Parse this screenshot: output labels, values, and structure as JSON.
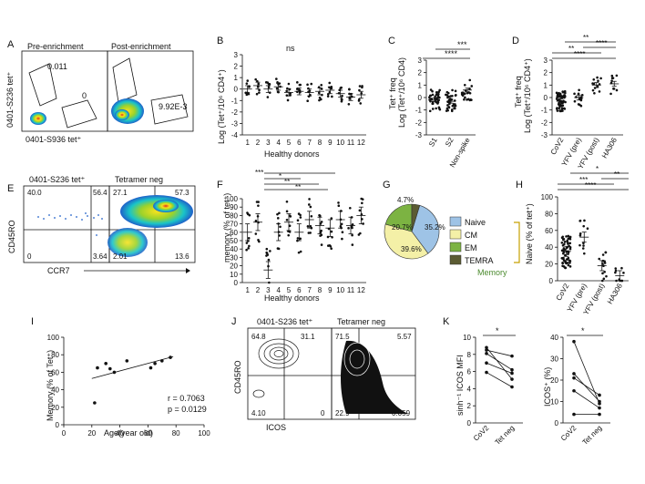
{
  "panels": {
    "A": {
      "letter": "A",
      "title_left": "Pre-enrichment",
      "title_right": "Post-enrichment",
      "ylabel": "0401-S236 tet⁺",
      "xlabel": "0401-S936 tet⁺",
      "pre_gate_top": "0.011",
      "pre_gate_bottom": "0",
      "post_gate": "9.92E-3"
    },
    "B": {
      "letter": "B",
      "stat": "ns",
      "ylabel": "Log (Tet⁺/10⁶ CD4⁺)",
      "xlabel": "Healthy donors"
    },
    "C": {
      "letter": "C",
      "ylabel_top": "Tet⁺ freq",
      "ylabel_bottom": "Log (Tet⁺/10⁶ CD4)",
      "sig_top": "***",
      "sig_bottom": "****"
    },
    "D": {
      "letter": "D",
      "ylabel_top": "Tet⁺ freq",
      "ylabel_bottom": "Log (Tet⁺/10⁶ CD4⁺)",
      "sigs": [
        "**",
        "****",
        "**",
        "****"
      ]
    },
    "E": {
      "letter": "E",
      "title_left": "0401-S236 tet⁺",
      "title_right": "Tetramer neg",
      "ylabel": "CD45RO",
      "xlabel": "CCR7",
      "left_q": [
        "40.0",
        "56.4",
        "0",
        "3.64"
      ],
      "right_q": [
        "27.1",
        "57.3",
        "2.01",
        "13.6"
      ]
    },
    "F": {
      "letter": "F",
      "ylabel": "memory (% of tet⁺)",
      "xlabel": "Healthy donors",
      "sigs": [
        "***",
        "*",
        "**",
        "**"
      ]
    },
    "G": {
      "letter": "G",
      "legend": [
        "Naive",
        "CM",
        "EM",
        "TEMRA"
      ],
      "memory_label": "Memory",
      "slices": [
        "35.2%",
        "39.6%",
        "20.7%",
        "4.7%"
      ]
    },
    "H": {
      "letter": "H",
      "ylabel": "Naive (% of tet⁺)",
      "sigs": [
        "*",
        "**",
        "***",
        "****"
      ]
    },
    "I": {
      "letter": "I",
      "ylabel": "Memory (% of Tet⁺)",
      "xlabel": "Age(year old)",
      "r_text": "r = 0.7063",
      "p_text": "p = 0.0129"
    },
    "J": {
      "letter": "J",
      "title_left": "0401-S236 tet⁺",
      "title_right": "Tetramer neg",
      "ylabel": "CD45RO",
      "xlabel": "ICOS",
      "left_q": [
        "64.8",
        "31.1",
        "4.10",
        "0"
      ],
      "right_q": [
        "71.5",
        "5.57",
        "22.9",
        "0.059"
      ]
    },
    "K": {
      "letter": "K",
      "left_ylabel": "sinh⁻¹ ICOS MFI",
      "right_ylabel": "ICOS⁺ (%)",
      "star": "*",
      "xcats": [
        "CoV2",
        "Tet neg"
      ]
    }
  },
  "colors": {
    "flow_blue": "#1f5fc9",
    "flow_cyan": "#19c4c9",
    "flow_green": "#9bd22b",
    "flow_yellow": "#f7e21e",
    "flow_red": "#e0281e",
    "naive": "#9ec3e6",
    "cm": "#f4f0a7",
    "em": "#7cb342",
    "temra": "#5b5b32",
    "memory_bracket": "#c6a000",
    "memory_text": "#4b8a2e"
  },
  "chart_data": [
    {
      "panel": "B",
      "type": "scatter",
      "categories": [
        "1",
        "2",
        "3",
        "4",
        "5",
        "6",
        "7",
        "8",
        "9",
        "10",
        "11",
        "12"
      ],
      "ylim": [
        -4,
        3
      ],
      "yticks": [
        -4,
        -3,
        -2,
        -1,
        0,
        1,
        2,
        3
      ],
      "series": [
        {
          "means": [
            0.0,
            0.3,
            0.0,
            0.2,
            -0.3,
            -0.2,
            -0.3,
            -0.2,
            -0.1,
            -0.4,
            -0.7,
            -0.5
          ]
        }
      ]
    },
    {
      "panel": "C",
      "type": "scatter",
      "categories": [
        "S1",
        "S2",
        "Non-spike"
      ],
      "ylim": [
        -3,
        3
      ],
      "yticks": [
        -3,
        -2,
        -1,
        0,
        1,
        2,
        3
      ],
      "series": [
        {
          "means": [
            -0.2,
            -0.3,
            0.6
          ]
        }
      ]
    },
    {
      "panel": "D",
      "type": "scatter",
      "categories": [
        "CoV2",
        "YFV (pre)",
        "YFV (post)",
        "HA306"
      ],
      "ylim": [
        -3,
        3
      ],
      "yticks": [
        -3,
        -2,
        -1,
        0,
        1,
        2,
        3
      ],
      "series": [
        {
          "means": [
            -0.3,
            0.0,
            1.0,
            1.1
          ]
        }
      ]
    },
    {
      "panel": "F",
      "type": "scatter",
      "categories": [
        "1",
        "2",
        "3",
        "4",
        "5",
        "6",
        "7",
        "8",
        "9",
        "10",
        "11",
        "12"
      ],
      "ylim": [
        0,
        100
      ],
      "yticks": [
        0,
        10,
        20,
        30,
        40,
        50,
        60,
        70,
        80,
        90,
        100
      ],
      "series": [
        {
          "means": [
            60,
            72,
            15,
            60,
            72,
            60,
            75,
            68,
            65,
            75,
            68,
            80
          ]
        }
      ]
    },
    {
      "panel": "G",
      "type": "pie",
      "categories": [
        "Naive",
        "CM",
        "EM",
        "TEMRA"
      ],
      "values": [
        35.2,
        39.6,
        20.7,
        4.7
      ]
    },
    {
      "panel": "H",
      "type": "scatter",
      "categories": [
        "CoV2",
        "YFV (pre)",
        "YFV (post)",
        "HA306"
      ],
      "ylim": [
        0,
        100
      ],
      "yticks": [
        0,
        20,
        40,
        60,
        80,
        100
      ],
      "series": [
        {
          "means": [
            35,
            52,
            18,
            6
          ]
        }
      ]
    },
    {
      "panel": "I",
      "type": "scatter",
      "xlim": [
        0,
        100
      ],
      "ylim": [
        0,
        100
      ],
      "xticks": [
        0,
        20,
        40,
        60,
        80,
        100
      ],
      "yticks": [
        0,
        20,
        40,
        60,
        80,
        100
      ],
      "x": [
        22,
        24,
        30,
        33,
        36,
        45,
        62,
        65,
        70,
        76
      ],
      "y": [
        25,
        65,
        70,
        64,
        60,
        73,
        65,
        70,
        73,
        77
      ]
    },
    {
      "panel": "K1",
      "type": "line",
      "categories": [
        "CoV2",
        "Tet neg"
      ],
      "ylim": [
        0,
        10
      ],
      "yticks": [
        0,
        2,
        4,
        6,
        8,
        10
      ],
      "series": [
        {
          "values": [
            8.8,
            5.1
          ]
        },
        {
          "values": [
            8.5,
            7.8
          ]
        },
        {
          "values": [
            8.1,
            6.2
          ]
        },
        {
          "values": [
            7.0,
            5.8
          ]
        },
        {
          "values": [
            5.9,
            4.2
          ]
        }
      ]
    },
    {
      "panel": "K2",
      "type": "line",
      "categories": [
        "CoV2",
        "Tet neg"
      ],
      "ylim": [
        0,
        40
      ],
      "yticks": [
        0,
        10,
        20,
        30,
        40
      ],
      "series": [
        {
          "values": [
            38,
            9
          ]
        },
        {
          "values": [
            23,
            10
          ]
        },
        {
          "values": [
            21,
            13
          ]
        },
        {
          "values": [
            15,
            7
          ]
        },
        {
          "values": [
            4,
            4
          ]
        }
      ]
    }
  ]
}
